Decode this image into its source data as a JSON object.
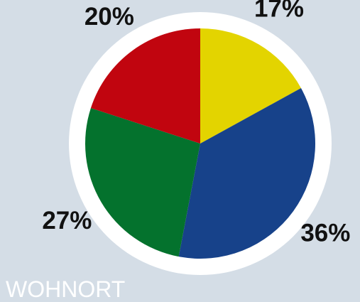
{
  "chart_data": {
    "type": "pie",
    "label": "WOHNORT",
    "values": [
      17,
      36,
      27,
      20
    ],
    "value_labels": [
      "17%",
      "36%",
      "27%",
      "20%"
    ],
    "colors": [
      "#e3d400",
      "#17428a",
      "#04722d",
      "#c1050f"
    ]
  }
}
